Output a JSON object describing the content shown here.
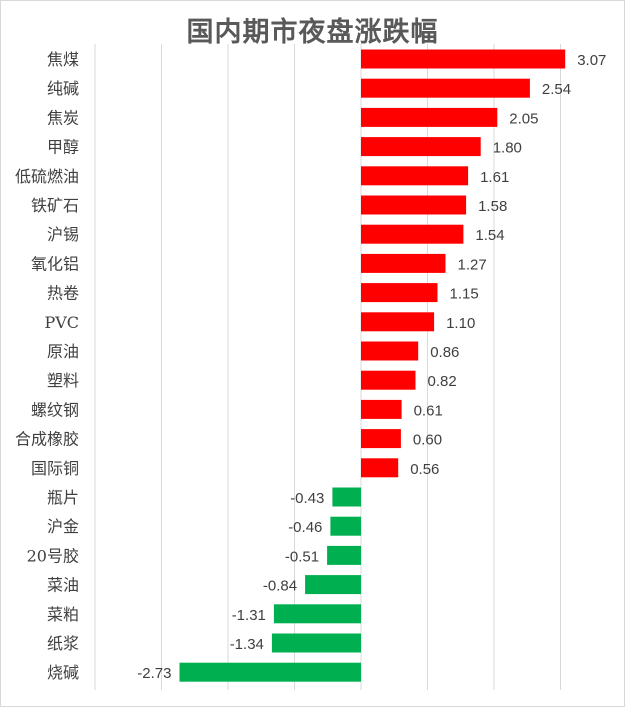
{
  "chart_data": {
    "type": "bar",
    "orientation": "horizontal",
    "title": "国内期市夜盘涨跌幅",
    "categories": [
      "焦煤",
      "纯碱",
      "焦炭",
      "甲醇",
      "低硫燃油",
      "铁矿石",
      "沪锡",
      "氧化铝",
      "热卷",
      "PVC",
      "原油",
      "塑料",
      "螺纹钢",
      "合成橡胶",
      "国际铜",
      "瓶片",
      "沪金",
      "20号胶",
      "菜油",
      "菜粕",
      "纸浆",
      "烧碱"
    ],
    "values": [
      3.07,
      2.54,
      2.05,
      1.8,
      1.61,
      1.58,
      1.54,
      1.27,
      1.15,
      1.1,
      0.86,
      0.82,
      0.61,
      0.6,
      0.56,
      -0.43,
      -0.46,
      -0.51,
      -0.84,
      -1.31,
      -1.34,
      -2.73
    ],
    "value_labels": [
      "3.07",
      "2.54",
      "2.05",
      "1.80",
      "1.61",
      "1.58",
      "1.54",
      "1.27",
      "1.15",
      "1.10",
      "0.86",
      "0.82",
      "0.61",
      "0.60",
      "0.56",
      "-0.43",
      "-0.46",
      "-0.51",
      "-0.84",
      "-1.31",
      "-1.34",
      "-2.73"
    ],
    "xlim": [
      -4,
      3.5
    ],
    "grid": true,
    "legend": "none",
    "colors": {
      "positive": "#ff0000",
      "negative": "#00b050",
      "grid": "#d9d9d9"
    }
  }
}
